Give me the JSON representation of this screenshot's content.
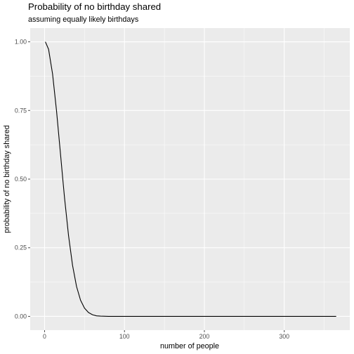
{
  "chart_data": {
    "type": "line",
    "title": "Probability of no birthday shared",
    "subtitle": "assuming equally likely birthdays",
    "xlabel": "number of people",
    "ylabel": "probability of no birthday shared",
    "xlim": [
      -18,
      382
    ],
    "ylim": [
      -0.05,
      1.05
    ],
    "x_ticks": [
      0,
      100,
      200,
      300
    ],
    "x_tick_labels": [
      "0",
      "100",
      "200",
      "300"
    ],
    "y_ticks": [
      0.0,
      0.25,
      0.5,
      0.75,
      1.0
    ],
    "y_tick_labels": [
      "0.00",
      "0.25",
      "0.50",
      "0.75",
      "1.00"
    ],
    "grid": true,
    "legend": "none",
    "colors": {
      "panel": "#ebebeb",
      "grid_major": "#ffffff",
      "line": "#000000",
      "tick": "#4d4d4d"
    },
    "series": [
      {
        "x": [
          1,
          5,
          10,
          15,
          20,
          23,
          25,
          30,
          35,
          40,
          45,
          50,
          55,
          60,
          65,
          70,
          80,
          90,
          100,
          150,
          200,
          250,
          300,
          365
        ],
        "values": [
          1.0,
          0.973,
          0.883,
          0.747,
          0.589,
          0.493,
          0.431,
          0.294,
          0.186,
          0.109,
          0.059,
          0.03,
          0.014,
          0.006,
          0.002,
          0.001,
          0.0,
          0.0,
          0.0,
          0.0,
          0.0,
          0.0,
          0.0,
          0.0
        ]
      }
    ]
  }
}
